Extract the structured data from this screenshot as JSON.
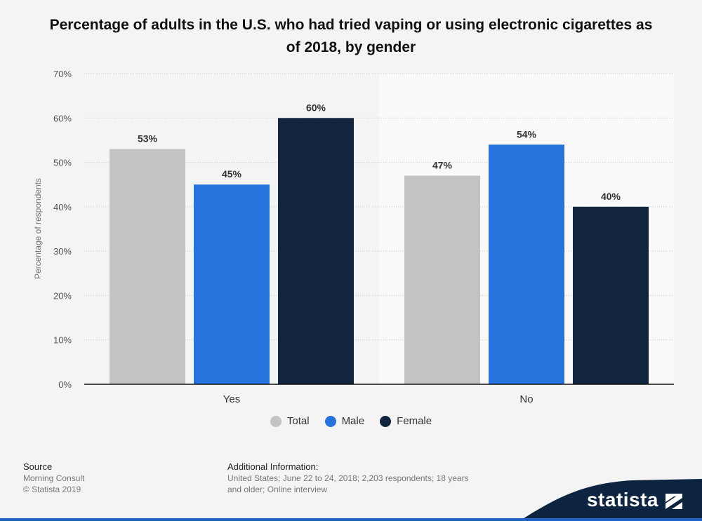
{
  "title": "Percentage of adults in the U.S. who had tried vaping or using electronic cigarettes as of 2018, by gender",
  "colors": {
    "total": "#c3c3c3",
    "male": "#2574de",
    "female": "#11263e",
    "band": "#f9f9f9"
  },
  "chart_data": {
    "type": "bar",
    "categories": [
      "Yes",
      "No"
    ],
    "series": [
      {
        "name": "Total",
        "values": [
          53,
          47
        ]
      },
      {
        "name": "Male",
        "values": [
          45,
          54
        ]
      },
      {
        "name": "Female",
        "values": [
          60,
          40
        ]
      }
    ],
    "value_labels": [
      [
        "53%",
        "47%"
      ],
      [
        "45%",
        "54%"
      ],
      [
        "60%",
        "40%"
      ]
    ],
    "ylabel": "Percentage of respondents",
    "ylim": [
      0,
      70
    ],
    "yticks": [
      "0%",
      "10%",
      "20%",
      "30%",
      "40%",
      "50%",
      "60%",
      "70%"
    ],
    "grid": true,
    "legend_position": "bottom-center"
  },
  "source": {
    "heading": "Source",
    "lines": [
      "Morning Consult",
      "© Statista 2019"
    ]
  },
  "additional": {
    "heading": "Additional Information:",
    "text": "United States; June 22 to 24, 2018; 2,203 respondents; 18 years and older; Online interview"
  },
  "brand": "statista"
}
